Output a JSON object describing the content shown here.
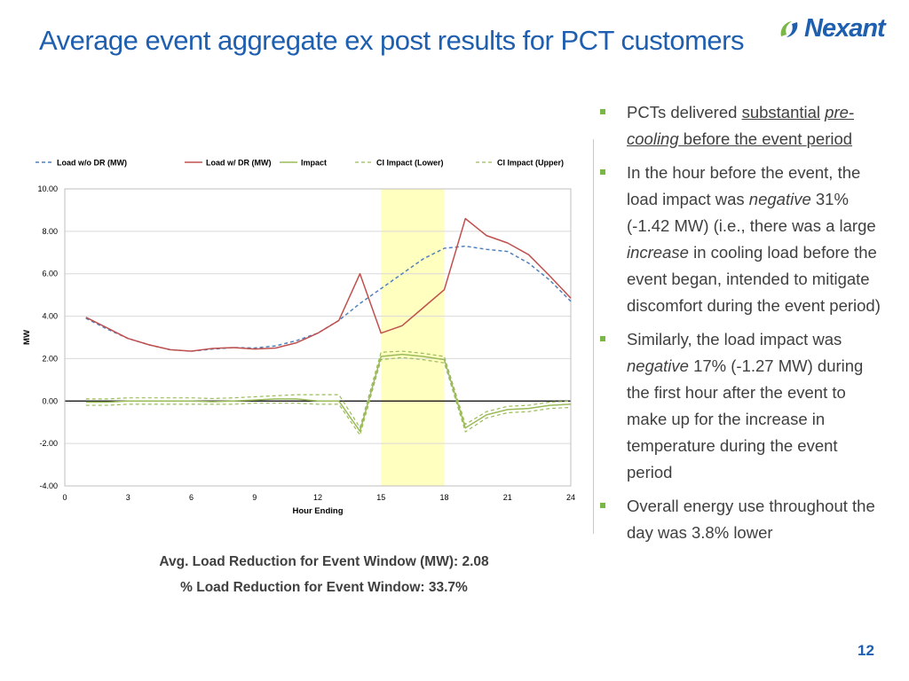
{
  "title": "Average event aggregate ex post results for PCT customers",
  "logo": {
    "text": "Nexant",
    "icon": "nexant-swirl-logo",
    "accent": "#7ab648",
    "brand": "#1f5fb0"
  },
  "stats": {
    "avg_load_reduction": "Avg. Load Reduction for Event Window (MW): 2.08",
    "pct_load_reduction": "% Load Reduction for Event Window: 33.7%"
  },
  "bullets": [
    {
      "parts": [
        {
          "t": "PCTs delivered ",
          "s": "n"
        },
        {
          "t": "substantial",
          "s": "u"
        },
        {
          "t": " ",
          "s": "n"
        },
        {
          "t": "pre-cooling",
          "s": "ui"
        },
        {
          "t": " before the event ",
          "s": "u"
        },
        {
          "t": "period",
          "s": "u"
        }
      ]
    },
    {
      "parts": [
        {
          "t": "In the hour before the event, the load impact was ",
          "s": "n"
        },
        {
          "t": "negative",
          "s": "i"
        },
        {
          "t": " 31% (-1.42 MW) (i.e., there was a large ",
          "s": "n"
        },
        {
          "t": "increase",
          "s": "i"
        },
        {
          "t": " in cooling load before the event began, intended to mitigate discomfort during the event period)",
          "s": "n"
        }
      ]
    },
    {
      "parts": [
        {
          "t": "Similarly, the load impact was ",
          "s": "n"
        },
        {
          "t": "negative",
          "s": "i"
        },
        {
          "t": " 17% (-1.27 MW) during the first hour after the event to make up for the increase in temperature during the event period",
          "s": "n"
        }
      ]
    },
    {
      "parts": [
        {
          "t": "Overall energy use throughout the day was 3.8% lower",
          "s": "n"
        }
      ]
    }
  ],
  "page_number": "12",
  "chart_data": {
    "type": "line",
    "xlabel": "Hour Ending",
    "ylabel": "MW",
    "xlim": [
      0,
      24
    ],
    "ylim": [
      -4,
      10
    ],
    "x_ticks": [
      "0",
      "3",
      "6",
      "9",
      "12",
      "15",
      "18",
      "21",
      "24"
    ],
    "y_ticks": [
      "10.00",
      "8.00",
      "6.00",
      "4.00",
      "2.00",
      "0.00",
      "-2.00",
      "-4.00"
    ],
    "grid": "horizontal",
    "legend_position": "top",
    "event_window": {
      "start": 15,
      "end": 18,
      "color": "#ffffc0"
    },
    "x": [
      1,
      2,
      3,
      4,
      5,
      6,
      7,
      8,
      9,
      10,
      11,
      12,
      13,
      14,
      15,
      16,
      17,
      18,
      19,
      20,
      21,
      22,
      23,
      24
    ],
    "series": [
      {
        "name": "Load w/o DR  (MW)",
        "color": "#4f81bd",
        "style": "dashed",
        "width": 1.5,
        "values": [
          3.9,
          3.4,
          2.95,
          2.65,
          2.42,
          2.35,
          2.45,
          2.52,
          2.5,
          2.6,
          2.85,
          3.2,
          3.8,
          4.6,
          5.3,
          6.0,
          6.7,
          7.2,
          7.3,
          7.15,
          7.05,
          6.5,
          5.7,
          4.7
        ]
      },
      {
        "name": "Load w/ DR (MW)",
        "color": "#c0504d",
        "style": "solid",
        "width": 1.5,
        "values": [
          3.95,
          3.45,
          2.95,
          2.65,
          2.42,
          2.35,
          2.48,
          2.52,
          2.45,
          2.5,
          2.75,
          3.2,
          3.8,
          6.0,
          3.2,
          3.55,
          4.4,
          5.25,
          8.6,
          7.8,
          7.45,
          6.9,
          5.9,
          4.85
        ]
      },
      {
        "name": "Impact",
        "color": "#9bbb59",
        "style": "solid",
        "width": 1.5,
        "values": [
          -0.05,
          -0.05,
          0.0,
          0.0,
          0.0,
          0.0,
          -0.03,
          0.0,
          0.05,
          0.1,
          0.1,
          0.0,
          0.0,
          -1.42,
          2.1,
          2.2,
          2.1,
          1.95,
          -1.27,
          -0.65,
          -0.4,
          -0.35,
          -0.2,
          -0.15
        ]
      },
      {
        "name": "CI Impact (Lower)",
        "color": "#9bbb59",
        "style": "dashed",
        "width": 1.2,
        "values": [
          -0.2,
          -0.2,
          -0.15,
          -0.15,
          -0.15,
          -0.15,
          -0.15,
          -0.15,
          -0.1,
          -0.1,
          -0.1,
          -0.15,
          -0.15,
          -1.6,
          1.95,
          2.05,
          1.95,
          1.8,
          -1.45,
          -0.8,
          -0.55,
          -0.5,
          -0.35,
          -0.3
        ]
      },
      {
        "name": "CI Impact (Upper)",
        "color": "#9bbb59",
        "style": "dashed",
        "width": 1.2,
        "values": [
          0.1,
          0.1,
          0.15,
          0.15,
          0.15,
          0.15,
          0.12,
          0.15,
          0.2,
          0.25,
          0.3,
          0.3,
          0.3,
          -1.25,
          2.3,
          2.35,
          2.25,
          2.1,
          -1.1,
          -0.5,
          -0.25,
          -0.2,
          -0.05,
          0.0
        ]
      }
    ]
  }
}
